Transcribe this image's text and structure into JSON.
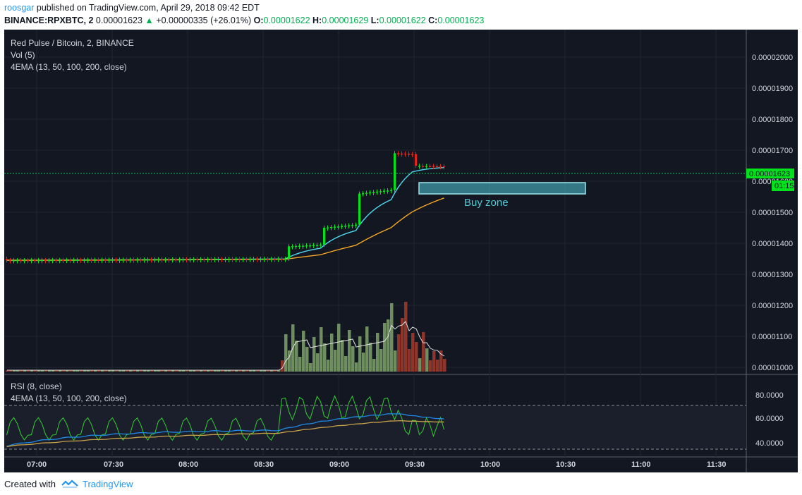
{
  "header": {
    "author": "roosgar",
    "published_text": "published on TradingView.com, April 29, 2018 09:42 EDT",
    "symbol": "BINANCE:RPXBTC, 2",
    "last": "0.00001623",
    "change": "+0.00000335 (+26.01%)",
    "o_label": "O:",
    "o": "0.00001622",
    "h_label": "H:",
    "h": "0.00001629",
    "l_label": "L:",
    "l": "0.00001622",
    "c_label": "C:",
    "c": "0.00001623"
  },
  "legend": {
    "title": "Red Pulse / Bitcoin, 2, BINANCE",
    "vol": "Vol (5)",
    "ema": "4EMA (13, 50, 100, 200, close)",
    "rsi": "RSI (8, close)",
    "rsi_ema": "4EMA (13, 50, 100, 200, close)"
  },
  "price_axis": {
    "labels": [
      "0.00002000",
      "0.00001900",
      "0.00001800",
      "0.00001700",
      "0.00001600",
      "0.00001500",
      "0.00001400",
      "0.00001300",
      "0.00001200",
      "0.00001100",
      "0.00001000"
    ],
    "current_price": "0.00001623",
    "countdown": "01:15"
  },
  "rsi_axis": {
    "labels": [
      "80.0000",
      "60.0000",
      "40.0000"
    ]
  },
  "time_axis": {
    "labels": [
      "07:00",
      "07:30",
      "08:00",
      "08:30",
      "09:00",
      "09:30",
      "10:00",
      "10:30",
      "11:00",
      "11:30"
    ]
  },
  "annotation": {
    "buy_zone": "Buy zone"
  },
  "colors": {
    "background": "#131722",
    "up": "#00e21c",
    "down": "#e2231a",
    "ema_fast": "#4dd9f0",
    "ema_slow": "#f5a623",
    "rsi": "#30d030",
    "rsi_ema_fast": "#1e88e5",
    "rsi_ema_slow": "#c9a24a",
    "buy_zone": "#4fc9d6",
    "price_line": "#00c853"
  },
  "chart_data": {
    "type": "line",
    "series": [
      {
        "name": "Red Pulse / Bitcoin, 2, BINANCE",
        "x": [
          "06:54",
          "07:30",
          "08:00",
          "08:30",
          "08:36",
          "08:50",
          "09:00",
          "09:06",
          "09:12",
          "09:18",
          "09:24",
          "09:30",
          "09:36"
        ],
        "values": [
          1.345e-05,
          1.36e-05,
          1.365e-05,
          1.38e-05,
          1.4e-05,
          1.45e-05,
          1.5e-05,
          1.62e-05,
          1.69e-05,
          1.7e-05,
          1.68e-05,
          1.65e-05,
          1.623e-05
        ]
      },
      {
        "name": "Vol (5)",
        "x": [
          "08:36",
          "08:50",
          "09:00",
          "09:10",
          "09:20",
          "09:30",
          "09:40"
        ],
        "values": [
          5,
          40,
          65,
          60,
          80,
          45,
          8
        ]
      },
      {
        "name": "RSI (8, close)",
        "x": [
          "06:54",
          "07:15",
          "07:30",
          "08:00",
          "08:30",
          "08:40",
          "09:00",
          "09:10",
          "09:20",
          "09:30",
          "09:40"
        ],
        "values": [
          40,
          65,
          70,
          55,
          70,
          92,
          75,
          90,
          92,
          60,
          52
        ]
      }
    ],
    "title": "Red Pulse / Bitcoin, 2, BINANCE",
    "ylim": [
      9.8e-06,
      2.05e-05
    ],
    "grid": true
  }
}
